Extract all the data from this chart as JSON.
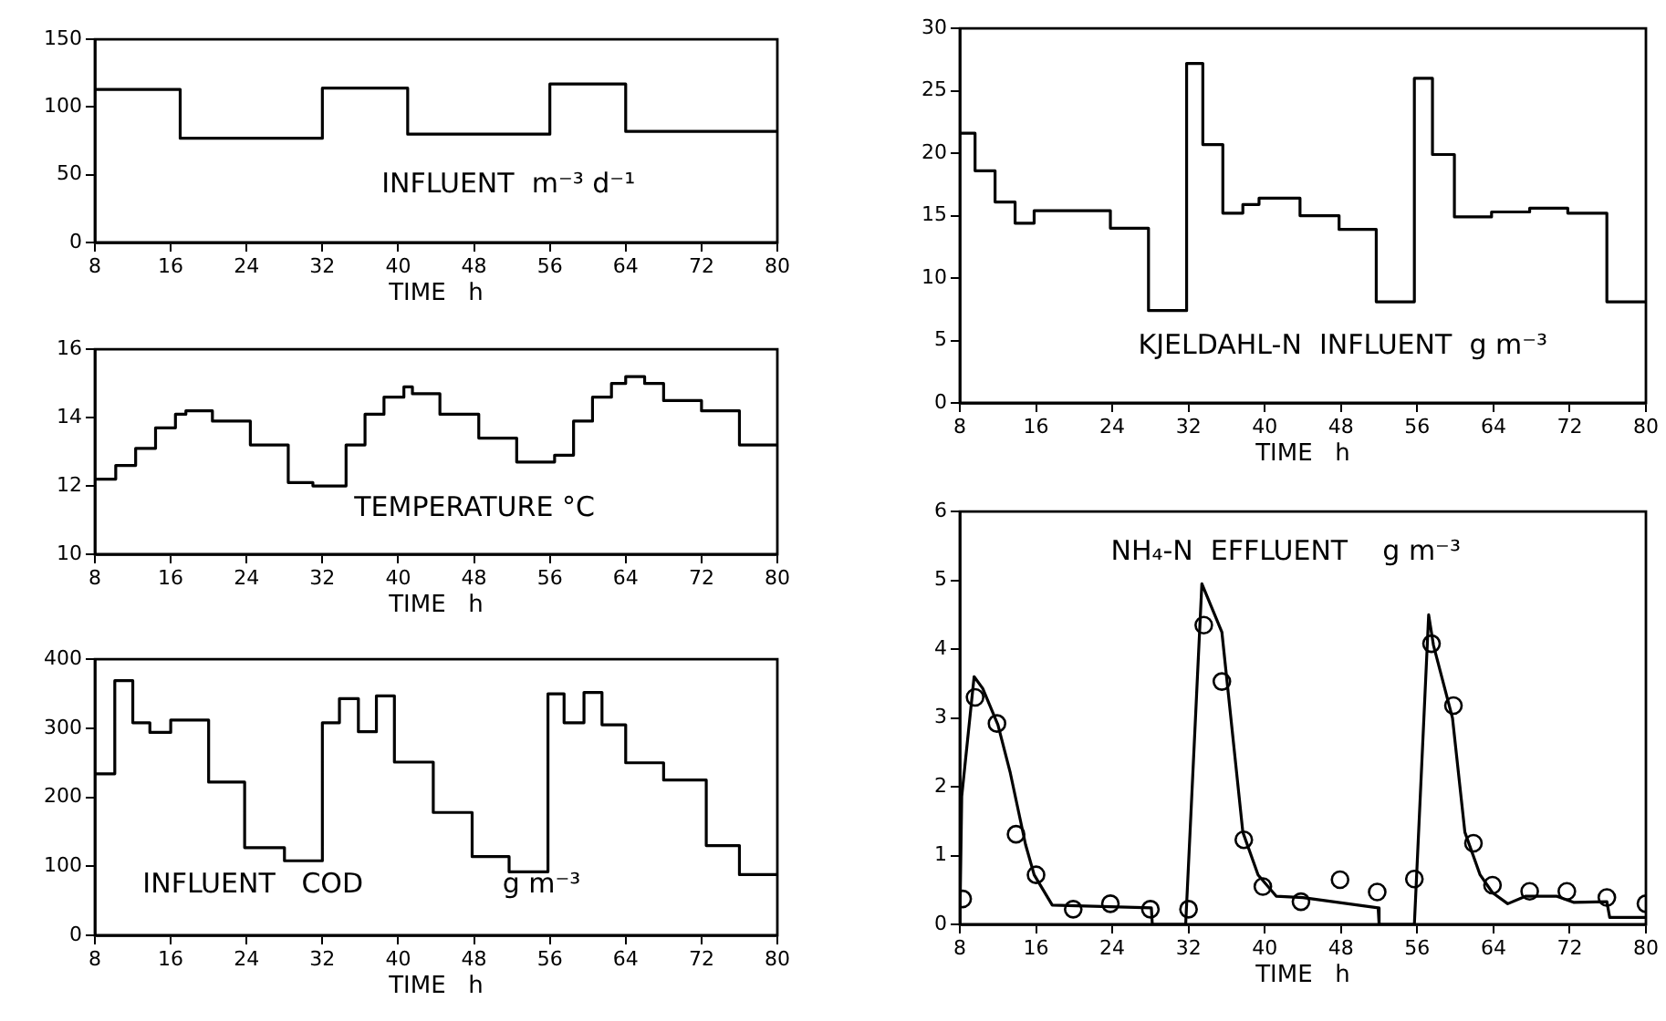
{
  "chart_data": [
    {
      "type": "step",
      "title": "INFLUENT  m⁻³ d⁻¹",
      "xlabel": "TIME   h",
      "color": "#000000",
      "marker": "none",
      "x": [
        8,
        17,
        32,
        41,
        56,
        64,
        80
      ],
      "values": [
        113,
        77,
        114,
        80,
        117,
        82,
        82
      ],
      "xlim": [
        8,
        80
      ],
      "xticks": [
        8,
        16,
        24,
        32,
        40,
        48,
        56,
        64,
        72,
        80
      ],
      "ylim": [
        0,
        150
      ],
      "yticks": [
        0,
        50,
        100,
        150
      ]
    },
    {
      "type": "step",
      "title": "TEMPERATURE °C",
      "xlabel": "TIME   h",
      "color": "#000000",
      "marker": "none",
      "x": [
        8,
        10.2,
        12.3,
        14.4,
        16.5,
        17.6,
        20.4,
        24.4,
        28.4,
        31,
        34.5,
        36.5,
        38.5,
        40.6,
        41.5,
        44.4,
        48.5,
        52.5,
        56.5,
        58.5,
        60.5,
        62.5,
        64,
        66,
        68,
        72,
        76,
        80
      ],
      "values": [
        12.2,
        12.6,
        13.1,
        13.7,
        14.1,
        14.2,
        13.9,
        13.2,
        12.1,
        12.0,
        13.2,
        14.1,
        14.6,
        14.9,
        14.7,
        14.1,
        13.4,
        12.7,
        12.9,
        13.9,
        14.6,
        15.0,
        15.2,
        15.0,
        14.5,
        14.2,
        13.2,
        13.2
      ],
      "xlim": [
        8,
        80
      ],
      "xticks": [
        8,
        16,
        24,
        32,
        40,
        48,
        56,
        64,
        72,
        80
      ],
      "ylim": [
        10,
        16
      ],
      "yticks": [
        10,
        12,
        14,
        16
      ]
    },
    {
      "type": "step",
      "title": "INFLUENT   COD                g m⁻³",
      "xlabel": "TIME   h",
      "color": "#000000",
      "marker": "none",
      "x": [
        8,
        10.1,
        12,
        13.8,
        16,
        20,
        23.8,
        28,
        32,
        33.8,
        35.8,
        37.7,
        39.6,
        43.7,
        47.8,
        51.7,
        55.8,
        57.5,
        59.6,
        61.5,
        64,
        68,
        72.5,
        76,
        80
      ],
      "values": [
        234,
        369,
        308,
        294,
        312,
        222,
        127,
        108,
        308,
        343,
        295,
        347,
        251,
        178,
        114,
        92,
        350,
        308,
        352,
        305,
        250,
        225,
        130,
        88,
        88
      ],
      "xlim": [
        8,
        80
      ],
      "xticks": [
        8,
        16,
        24,
        32,
        40,
        48,
        56,
        64,
        72,
        80
      ],
      "ylim": [
        0,
        400
      ],
      "yticks": [
        0,
        100,
        200,
        300,
        400
      ]
    },
    {
      "type": "step",
      "title": "KJELDAHL-N  INFLUENT  g m⁻³",
      "xlabel": "TIME   h",
      "color": "#000000",
      "marker": "none",
      "x": [
        8,
        9.6,
        11.7,
        13.8,
        15.8,
        23.8,
        27.8,
        31.8,
        33.5,
        35.6,
        37.7,
        39.4,
        43.7,
        47.8,
        51.7,
        55.7,
        57.6,
        59.9,
        63.8,
        67.8,
        71.8,
        75.9,
        80
      ],
      "values": [
        21.6,
        18.6,
        16.1,
        14.4,
        15.4,
        14.0,
        7.4,
        27.2,
        20.7,
        15.2,
        15.9,
        16.4,
        15.0,
        13.9,
        8.1,
        26.0,
        19.9,
        14.9,
        15.3,
        15.6,
        15.2,
        8.1,
        8.1
      ],
      "xlim": [
        8,
        80
      ],
      "xticks": [
        8,
        16,
        24,
        32,
        40,
        48,
        56,
        64,
        72,
        80
      ],
      "ylim": [
        0,
        30
      ],
      "yticks": [
        0,
        5,
        10,
        15,
        20,
        25,
        30
      ]
    },
    {
      "type": "line",
      "title": "NH₄-N  EFFLUENT    g m⁻³",
      "xlabel": "TIME   h",
      "xlim": [
        8,
        80
      ],
      "xticks": [
        8,
        16,
        24,
        32,
        40,
        48,
        56,
        64,
        72,
        80
      ],
      "ylim": [
        0,
        6
      ],
      "yticks": [
        0,
        1,
        2,
        3,
        4,
        5,
        6
      ],
      "series": [
        {
          "type": "line",
          "color": "#000000",
          "marker": "none",
          "x": [
            8,
            8.2,
            9.5,
            10.4,
            12,
            13.3,
            14.9,
            15.8,
            17.7,
            28.1,
            28.2,
            31.7,
            33.4,
            35.5,
            37.7,
            39.3,
            41.2,
            44,
            51.9,
            52,
            55.7,
            57.2,
            57.7,
            59.7,
            61,
            62.6,
            63.9,
            65.5,
            67.4,
            70.6,
            72.4,
            75.9,
            76.2,
            80
          ],
          "values": [
            0,
            1.86,
            3.6,
            3.43,
            2.9,
            2.2,
            1.16,
            0.72,
            0.28,
            0.24,
            0,
            0,
            4.95,
            4.25,
            1.34,
            0.72,
            0.41,
            0.39,
            0.24,
            0,
            0,
            4.5,
            4.06,
            3.0,
            1.34,
            0.72,
            0.46,
            0.3,
            0.41,
            0.41,
            0.32,
            0.33,
            0.1,
            0.1
          ]
        },
        {
          "type": "scatter",
          "color": "#000000",
          "marker": "circle",
          "x": [
            8.3,
            9.6,
            11.9,
            13.9,
            16,
            19.9,
            23.8,
            28,
            32,
            33.6,
            35.5,
            37.8,
            39.8,
            43.8,
            47.9,
            51.8,
            55.7,
            57.5,
            59.8,
            61.9,
            63.9,
            67.8,
            71.7,
            75.9,
            80
          ],
          "values": [
            0.37,
            3.3,
            2.92,
            1.31,
            0.72,
            0.22,
            0.3,
            0.22,
            0.22,
            4.35,
            3.53,
            1.23,
            0.55,
            0.33,
            0.65,
            0.47,
            0.66,
            4.08,
            3.18,
            1.18,
            0.57,
            0.48,
            0.48,
            0.39,
            0.3
          ]
        }
      ]
    }
  ]
}
